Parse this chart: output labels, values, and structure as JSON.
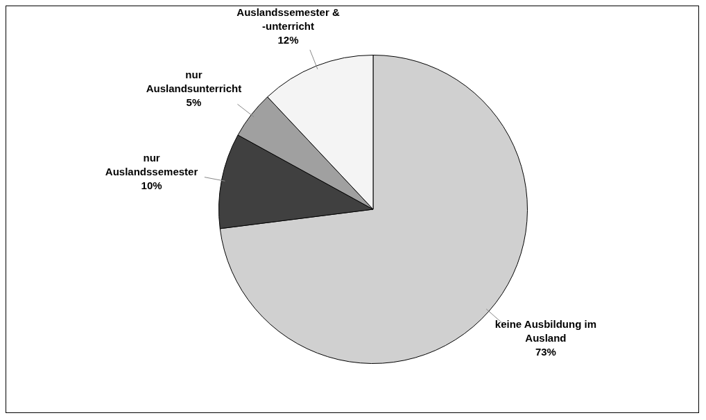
{
  "chart_data": {
    "type": "pie",
    "categories": [
      "keine Ausbildung im Ausland",
      "nur Auslandssemester",
      "nur Auslandsunterricht",
      "Auslandssemester & -unterricht"
    ],
    "values": [
      73,
      10,
      5,
      12
    ],
    "colors": [
      "#d0d0d0",
      "#404040",
      "#a0a0a0",
      "#f4f4f4"
    ],
    "value_labels": [
      "73%",
      "10%",
      "5%",
      "12%"
    ],
    "legend": false
  }
}
